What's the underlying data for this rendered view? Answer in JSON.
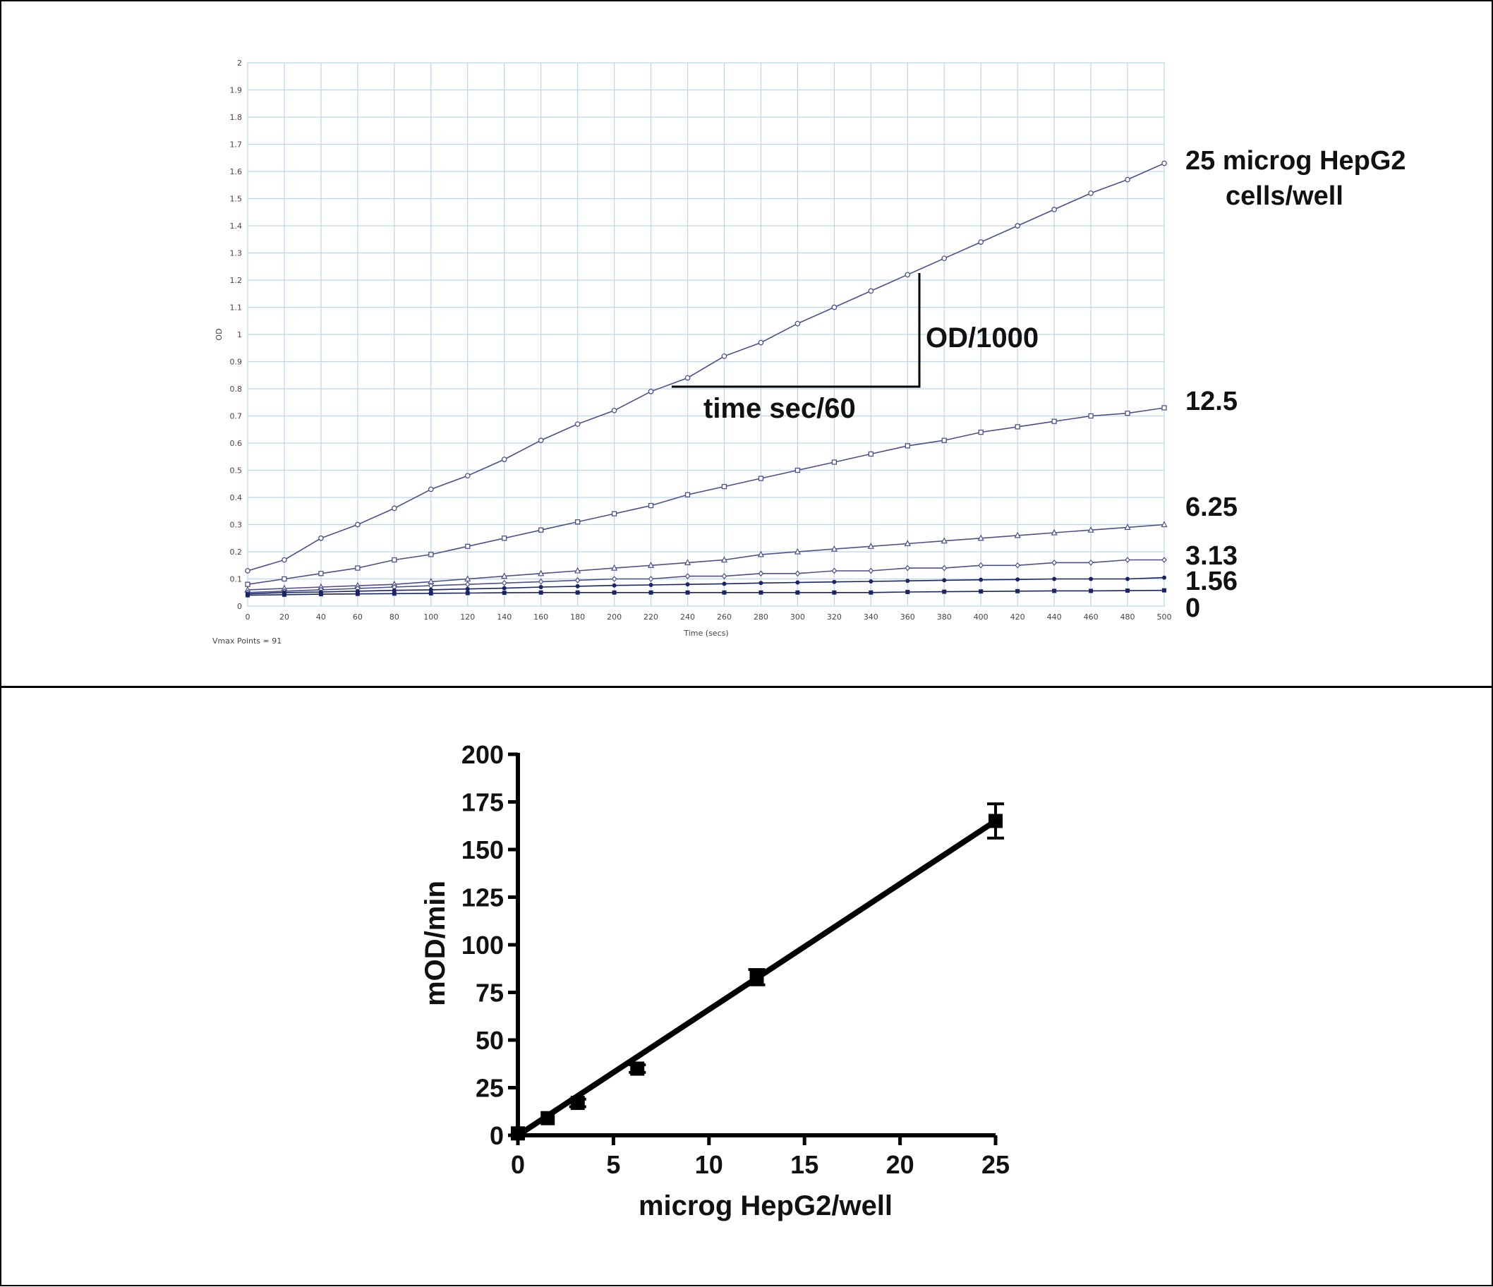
{
  "colors": {
    "grid": "#b9d7ea",
    "series": "#4b4f8c",
    "dark_series": "#1a2466",
    "ink": "#000000"
  },
  "chart_data": [
    {
      "type": "line",
      "xlabel": "Time (secs)",
      "ylabel": "OD",
      "footnote": "Vmax Points = 91",
      "xlim": [
        0,
        500
      ],
      "ylim": [
        0,
        2
      ],
      "grid": true,
      "x_ticks": [
        "0",
        "20",
        "40",
        "60",
        "80",
        "100",
        "120",
        "140",
        "160",
        "180",
        "200",
        "220",
        "240",
        "260",
        "280",
        "300",
        "320",
        "340",
        "360",
        "380",
        "400",
        "420",
        "440",
        "460",
        "480",
        "500"
      ],
      "y_ticks": [
        "0",
        "0.1",
        "0.2",
        "0.3",
        "0.4",
        "0.5",
        "0.6",
        "0.7",
        "0.8",
        "0.9",
        "1",
        "1.1",
        "1.2",
        "1.3",
        "1.4",
        "1.5",
        "1.6",
        "1.7",
        "1.8",
        "1.9",
        "2"
      ],
      "x": [
        0,
        20,
        40,
        60,
        80,
        100,
        120,
        140,
        160,
        180,
        200,
        220,
        240,
        260,
        280,
        300,
        320,
        340,
        360,
        380,
        400,
        420,
        440,
        460,
        480,
        500
      ],
      "series": [
        {
          "name": "25 microg HepG2 cells/well",
          "marker": "circle",
          "values": [
            0.13,
            0.17,
            0.25,
            0.3,
            0.36,
            0.43,
            0.48,
            0.54,
            0.61,
            0.67,
            0.72,
            0.79,
            0.84,
            0.92,
            0.97,
            1.04,
            1.1,
            1.16,
            1.22,
            1.28,
            1.34,
            1.4,
            1.46,
            1.52,
            1.57,
            1.63
          ]
        },
        {
          "name": "12.5",
          "marker": "square",
          "values": [
            0.08,
            0.1,
            0.12,
            0.14,
            0.17,
            0.19,
            0.22,
            0.25,
            0.28,
            0.31,
            0.34,
            0.37,
            0.41,
            0.44,
            0.47,
            0.5,
            0.53,
            0.56,
            0.59,
            0.61,
            0.64,
            0.66,
            0.68,
            0.7,
            0.71,
            0.73
          ]
        },
        {
          "name": "6.25",
          "marker": "triangle",
          "values": [
            0.06,
            0.065,
            0.07,
            0.075,
            0.08,
            0.09,
            0.1,
            0.11,
            0.12,
            0.13,
            0.14,
            0.15,
            0.16,
            0.17,
            0.19,
            0.2,
            0.21,
            0.22,
            0.23,
            0.24,
            0.25,
            0.26,
            0.27,
            0.28,
            0.29,
            0.3
          ]
        },
        {
          "name": "3.13",
          "marker": "diamond",
          "values": [
            0.05,
            0.055,
            0.06,
            0.065,
            0.07,
            0.075,
            0.08,
            0.085,
            0.09,
            0.095,
            0.1,
            0.1,
            0.11,
            0.11,
            0.12,
            0.12,
            0.13,
            0.13,
            0.14,
            0.14,
            0.15,
            0.15,
            0.16,
            0.16,
            0.17,
            0.17
          ]
        },
        {
          "name": "1.56",
          "marker": "dot",
          "values": [
            0.045,
            0.05,
            0.052,
            0.055,
            0.058,
            0.06,
            0.063,
            0.066,
            0.07,
            0.073,
            0.076,
            0.078,
            0.08,
            0.082,
            0.085,
            0.087,
            0.089,
            0.091,
            0.093,
            0.095,
            0.097,
            0.098,
            0.1,
            0.1,
            0.1,
            0.105
          ]
        },
        {
          "name": "0",
          "marker": "filled-square",
          "values": [
            0.04,
            0.042,
            0.044,
            0.045,
            0.046,
            0.047,
            0.048,
            0.049,
            0.05,
            0.05,
            0.05,
            0.05,
            0.05,
            0.05,
            0.05,
            0.05,
            0.05,
            0.05,
            0.052,
            0.053,
            0.054,
            0.055,
            0.056,
            0.056,
            0.057,
            0.058
          ]
        }
      ],
      "annotations": {
        "vertical": "OD/1000",
        "horizontal": "time sec/60"
      }
    },
    {
      "type": "scatter",
      "xlabel": "microg HepG2/well",
      "ylabel": "mOD/min",
      "xlim": [
        0,
        25
      ],
      "ylim": [
        0,
        200
      ],
      "grid": false,
      "x_ticks": [
        "0",
        "5",
        "10",
        "15",
        "20",
        "25"
      ],
      "y_ticks": [
        "0",
        "25",
        "50",
        "75",
        "100",
        "125",
        "150",
        "175",
        "200"
      ],
      "x": [
        0,
        1.56,
        3.13,
        6.25,
        12.5,
        25
      ],
      "values": [
        1,
        9,
        17,
        35,
        83,
        165
      ],
      "error": [
        1,
        1,
        2,
        2,
        4,
        9
      ],
      "fit": {
        "type": "linear",
        "x": [
          0,
          25
        ],
        "y": [
          0,
          165
        ]
      }
    }
  ]
}
